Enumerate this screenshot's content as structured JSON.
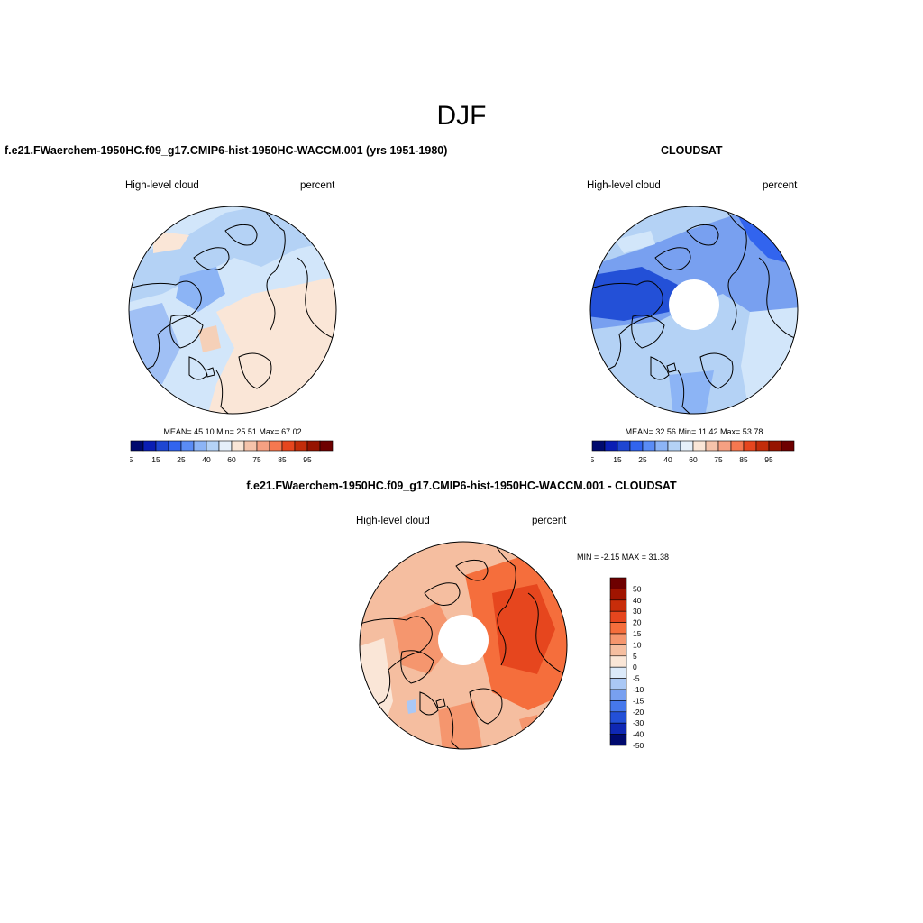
{
  "figure": {
    "title": "DJF"
  },
  "panels": [
    {
      "title": "f.e21.FWaerchem-1950HC.f09_g17.CMIP6-hist-1950HC-WACCM.001 (yrs 1951-1980)",
      "left_label": "High-level cloud",
      "right_label": "percent",
      "stats": "MEAN=  45.10  Min=  25.51  Max=  67.02",
      "colorbar": {
        "labels": [
          "5",
          "15",
          "25",
          "40",
          "60",
          "75",
          "85",
          "95"
        ],
        "colors": [
          "#000a6e",
          "#0a1eb4",
          "#1e46d2",
          "#3264ee",
          "#5a8cf5",
          "#8cb4f5",
          "#b4d2f5",
          "#e6f0fa",
          "#fae6d7",
          "#f5c3aa",
          "#f5a082",
          "#f57850",
          "#e6461e",
          "#c32d0a",
          "#961400",
          "#6e0000"
        ]
      }
    },
    {
      "title": "CLOUDSAT",
      "left_label": "High-level cloud",
      "right_label": "percent",
      "stats": "MEAN=  32.56  Min=  11.42  Max=  53.78",
      "colorbar": {
        "labels": [
          "5",
          "15",
          "25",
          "40",
          "60",
          "75",
          "85",
          "95"
        ],
        "colors": [
          "#000a6e",
          "#0a1eb4",
          "#1e46d2",
          "#3264ee",
          "#5a8cf5",
          "#8cb4f5",
          "#b4d2f5",
          "#e6f0fa",
          "#fae6d7",
          "#f5c3aa",
          "#f5a082",
          "#f57850",
          "#e6461e",
          "#c32d0a",
          "#961400",
          "#6e0000"
        ]
      }
    },
    {
      "title": "f.e21.FWaerchem-1950HC.f09_g17.CMIP6-hist-1950HC-WACCM.001 - CLOUDSAT",
      "left_label": "High-level cloud",
      "right_label": "percent",
      "stats": "MIN =  -2.15 MAX =  31.38",
      "colorbar": {
        "labels": [
          "50",
          "40",
          "30",
          "20",
          "15",
          "10",
          "5",
          "0",
          "-5",
          "-10",
          "-15",
          "-20",
          "-30",
          "-40",
          "-50"
        ],
        "colors": [
          "#6e0000",
          "#a01400",
          "#c82d0a",
          "#e6461e",
          "#f56e3c",
          "#f5966e",
          "#f5bea0",
          "#fae6d7",
          "#dceafa",
          "#aac8f5",
          "#78a0f0",
          "#4678eb",
          "#2350d7",
          "#0f28b4",
          "#000a6e"
        ]
      }
    }
  ]
}
